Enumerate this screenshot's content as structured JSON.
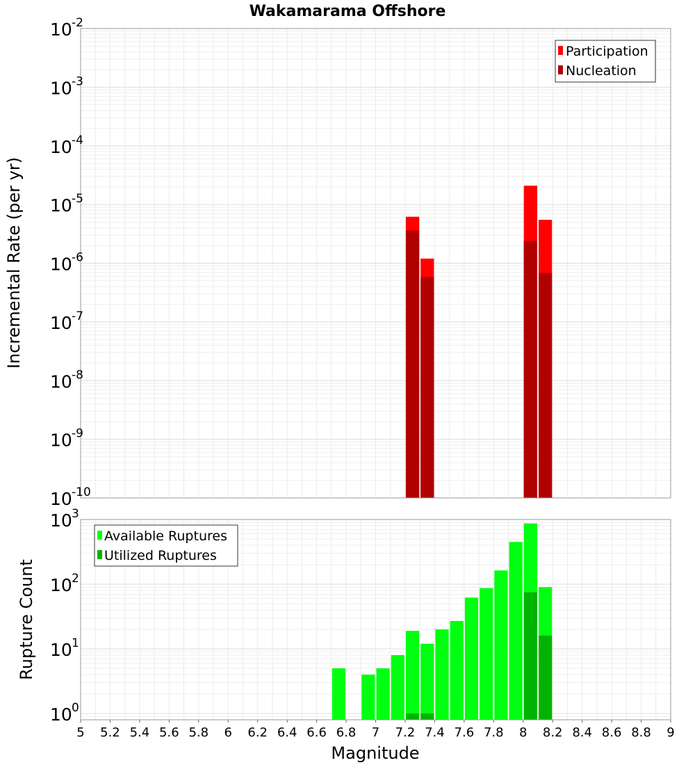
{
  "chart_data": [
    {
      "type": "bar",
      "title": "Wakamarama Offshore",
      "ylabel": "Incremental Rate (per yr)",
      "yscale": "log",
      "ylim": [
        1e-10,
        0.01
      ],
      "grid": true,
      "legend_position": "top-right",
      "bin_width": 0.1,
      "series": [
        {
          "name": "Participation",
          "color": "#ff0000",
          "x": [
            7.25,
            7.35,
            8.05,
            8.15
          ],
          "values": [
            6.2e-06,
            1.2e-06,
            2.1e-05,
            5.5e-06
          ]
        },
        {
          "name": "Nucleation",
          "color": "#b00000",
          "x": [
            7.25,
            7.35,
            8.05,
            8.15
          ],
          "values": [
            3.6e-06,
            5.8e-07,
            2.4e-06,
            6.8e-07
          ]
        }
      ]
    },
    {
      "type": "bar",
      "ylabel": "Rupture Count",
      "xlabel": "Magnitude",
      "yscale": "log",
      "ylim": [
        0.8,
        1000
      ],
      "xlim": [
        5,
        9
      ],
      "xticks": [
        "5",
        "5.2",
        "5.4",
        "5.6",
        "5.8",
        "6",
        "6.2",
        "6.4",
        "6.6",
        "6.8",
        "7",
        "7.2",
        "7.4",
        "7.6",
        "7.8",
        "8",
        "8.2",
        "8.4",
        "8.6",
        "8.8",
        "9"
      ],
      "grid": true,
      "legend_position": "top-left",
      "bin_width": 0.1,
      "series": [
        {
          "name": "Available Ruptures",
          "color": "#00ff10",
          "x": [
            6.75,
            6.95,
            7.05,
            7.15,
            7.25,
            7.35,
            7.45,
            7.55,
            7.65,
            7.75,
            7.85,
            7.95,
            8.05,
            8.15
          ],
          "values": [
            5,
            4,
            5,
            8,
            19,
            12,
            20,
            27,
            62,
            87,
            163,
            450,
            870,
            90
          ]
        },
        {
          "name": "Utilized Ruptures",
          "color": "#00b300",
          "x": [
            7.25,
            7.35,
            8.05,
            8.15
          ],
          "values": [
            1,
            1,
            75,
            16
          ]
        }
      ]
    }
  ]
}
